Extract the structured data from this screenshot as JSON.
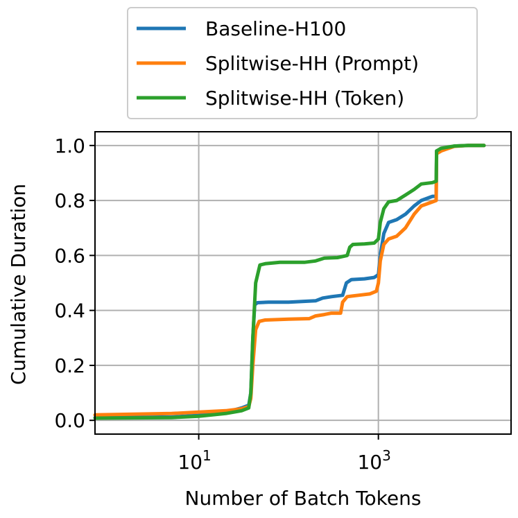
{
  "chart_data": {
    "type": "line",
    "xlabel": "Number of Batch Tokens",
    "ylabel": "Cumulative Duration",
    "xscale": "log",
    "xlim": [
      0.7,
      30000
    ],
    "ylim": [
      -0.05,
      1.05
    ],
    "xticks": [
      {
        "value": 10,
        "base": "10",
        "exp": "1"
      },
      {
        "value": 1000,
        "base": "10",
        "exp": "3"
      }
    ],
    "yticks": [
      {
        "value": 0.0,
        "label": "0.0"
      },
      {
        "value": 0.2,
        "label": "0.2"
      },
      {
        "value": 0.4,
        "label": "0.4"
      },
      {
        "value": 0.6,
        "label": "0.6"
      },
      {
        "value": 0.8,
        "label": "0.8"
      },
      {
        "value": 1.0,
        "label": "1.0"
      }
    ],
    "grid": true,
    "legend_position": "top, above plot",
    "series": [
      {
        "name": "Baseline-H100",
        "color": "#1f77b4",
        "points": [
          [
            0.7,
            0.01
          ],
          [
            5,
            0.012
          ],
          [
            10,
            0.018
          ],
          [
            20,
            0.03
          ],
          [
            30,
            0.045
          ],
          [
            36,
            0.055
          ],
          [
            38,
            0.1
          ],
          [
            40,
            0.3
          ],
          [
            42,
            0.42
          ],
          [
            45,
            0.428
          ],
          [
            60,
            0.43
          ],
          [
            100,
            0.43
          ],
          [
            200,
            0.435
          ],
          [
            240,
            0.445
          ],
          [
            300,
            0.45
          ],
          [
            400,
            0.455
          ],
          [
            440,
            0.5
          ],
          [
            500,
            0.512
          ],
          [
            700,
            0.515
          ],
          [
            900,
            0.52
          ],
          [
            1000,
            0.53
          ],
          [
            1050,
            0.6
          ],
          [
            1150,
            0.68
          ],
          [
            1300,
            0.72
          ],
          [
            1600,
            0.73
          ],
          [
            2000,
            0.75
          ],
          [
            2500,
            0.78
          ],
          [
            3000,
            0.8
          ],
          [
            4000,
            0.815
          ],
          [
            4400,
            0.815
          ],
          [
            4450,
            0.98
          ],
          [
            5000,
            0.985
          ],
          [
            7000,
            0.998
          ],
          [
            10000,
            1.0
          ],
          [
            15000,
            1.0
          ]
        ]
      },
      {
        "name": "Splitwise-HH (Prompt)",
        "color": "#ff7f0e",
        "points": [
          [
            0.7,
            0.02
          ],
          [
            5,
            0.025
          ],
          [
            10,
            0.03
          ],
          [
            20,
            0.035
          ],
          [
            30,
            0.042
          ],
          [
            36,
            0.05
          ],
          [
            38,
            0.08
          ],
          [
            40,
            0.2
          ],
          [
            43,
            0.33
          ],
          [
            47,
            0.36
          ],
          [
            55,
            0.365
          ],
          [
            100,
            0.368
          ],
          [
            170,
            0.37
          ],
          [
            200,
            0.38
          ],
          [
            250,
            0.385
          ],
          [
            300,
            0.39
          ],
          [
            380,
            0.39
          ],
          [
            400,
            0.43
          ],
          [
            450,
            0.45
          ],
          [
            600,
            0.455
          ],
          [
            800,
            0.46
          ],
          [
            950,
            0.47
          ],
          [
            1000,
            0.5
          ],
          [
            1050,
            0.58
          ],
          [
            1150,
            0.64
          ],
          [
            1300,
            0.66
          ],
          [
            1600,
            0.67
          ],
          [
            2000,
            0.7
          ],
          [
            2500,
            0.75
          ],
          [
            3000,
            0.78
          ],
          [
            4000,
            0.795
          ],
          [
            4400,
            0.8
          ],
          [
            4450,
            0.97
          ],
          [
            5000,
            0.98
          ],
          [
            7000,
            0.997
          ],
          [
            10000,
            1.0
          ],
          [
            15000,
            1.0
          ]
        ]
      },
      {
        "name": "Splitwise-HH (Token)",
        "color": "#2ca02c",
        "points": [
          [
            0.7,
            0.008
          ],
          [
            5,
            0.01
          ],
          [
            10,
            0.015
          ],
          [
            20,
            0.025
          ],
          [
            30,
            0.035
          ],
          [
            36,
            0.045
          ],
          [
            38,
            0.1
          ],
          [
            40,
            0.3
          ],
          [
            43,
            0.5
          ],
          [
            48,
            0.565
          ],
          [
            55,
            0.57
          ],
          [
            80,
            0.575
          ],
          [
            150,
            0.575
          ],
          [
            200,
            0.58
          ],
          [
            250,
            0.59
          ],
          [
            350,
            0.592
          ],
          [
            450,
            0.6
          ],
          [
            480,
            0.63
          ],
          [
            520,
            0.64
          ],
          [
            700,
            0.642
          ],
          [
            900,
            0.645
          ],
          [
            1000,
            0.66
          ],
          [
            1050,
            0.72
          ],
          [
            1150,
            0.77
          ],
          [
            1300,
            0.795
          ],
          [
            1600,
            0.8
          ],
          [
            2000,
            0.82
          ],
          [
            2500,
            0.84
          ],
          [
            3000,
            0.86
          ],
          [
            4000,
            0.865
          ],
          [
            4400,
            0.87
          ],
          [
            4450,
            0.98
          ],
          [
            5000,
            0.99
          ],
          [
            7000,
            0.998
          ],
          [
            10000,
            1.0
          ],
          [
            15000,
            1.0
          ]
        ]
      }
    ]
  }
}
